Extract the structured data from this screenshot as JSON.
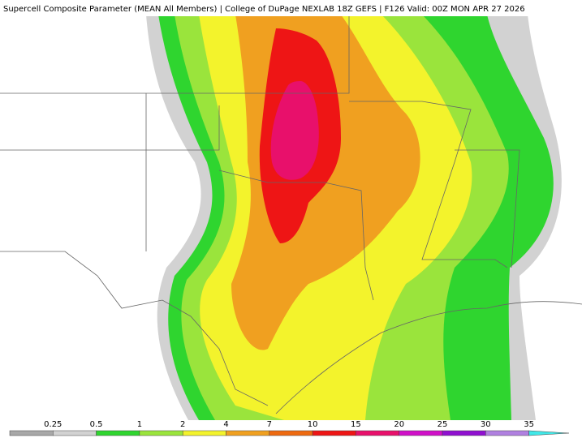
{
  "header": {
    "title": "Supercell Composite Parameter (MEAN All Members) | College of DuPage NEXLAB 18Z GEFS | F126 Valid: 00Z MON APR 27 2026"
  },
  "colorbar": {
    "labels": [
      0.25,
      0.5,
      1,
      2,
      4,
      7,
      10,
      15,
      20,
      25,
      30,
      35
    ],
    "colors": [
      "#a8a8a8",
      "#d2d2d2",
      "#2fd52f",
      "#9ae43c",
      "#f3f32c",
      "#f0a020",
      "#ee6a10",
      "#ee1515",
      "#e8106b",
      "#d010c8",
      "#9010d0",
      "#b080e0",
      "#40e8e8"
    ]
  }
}
